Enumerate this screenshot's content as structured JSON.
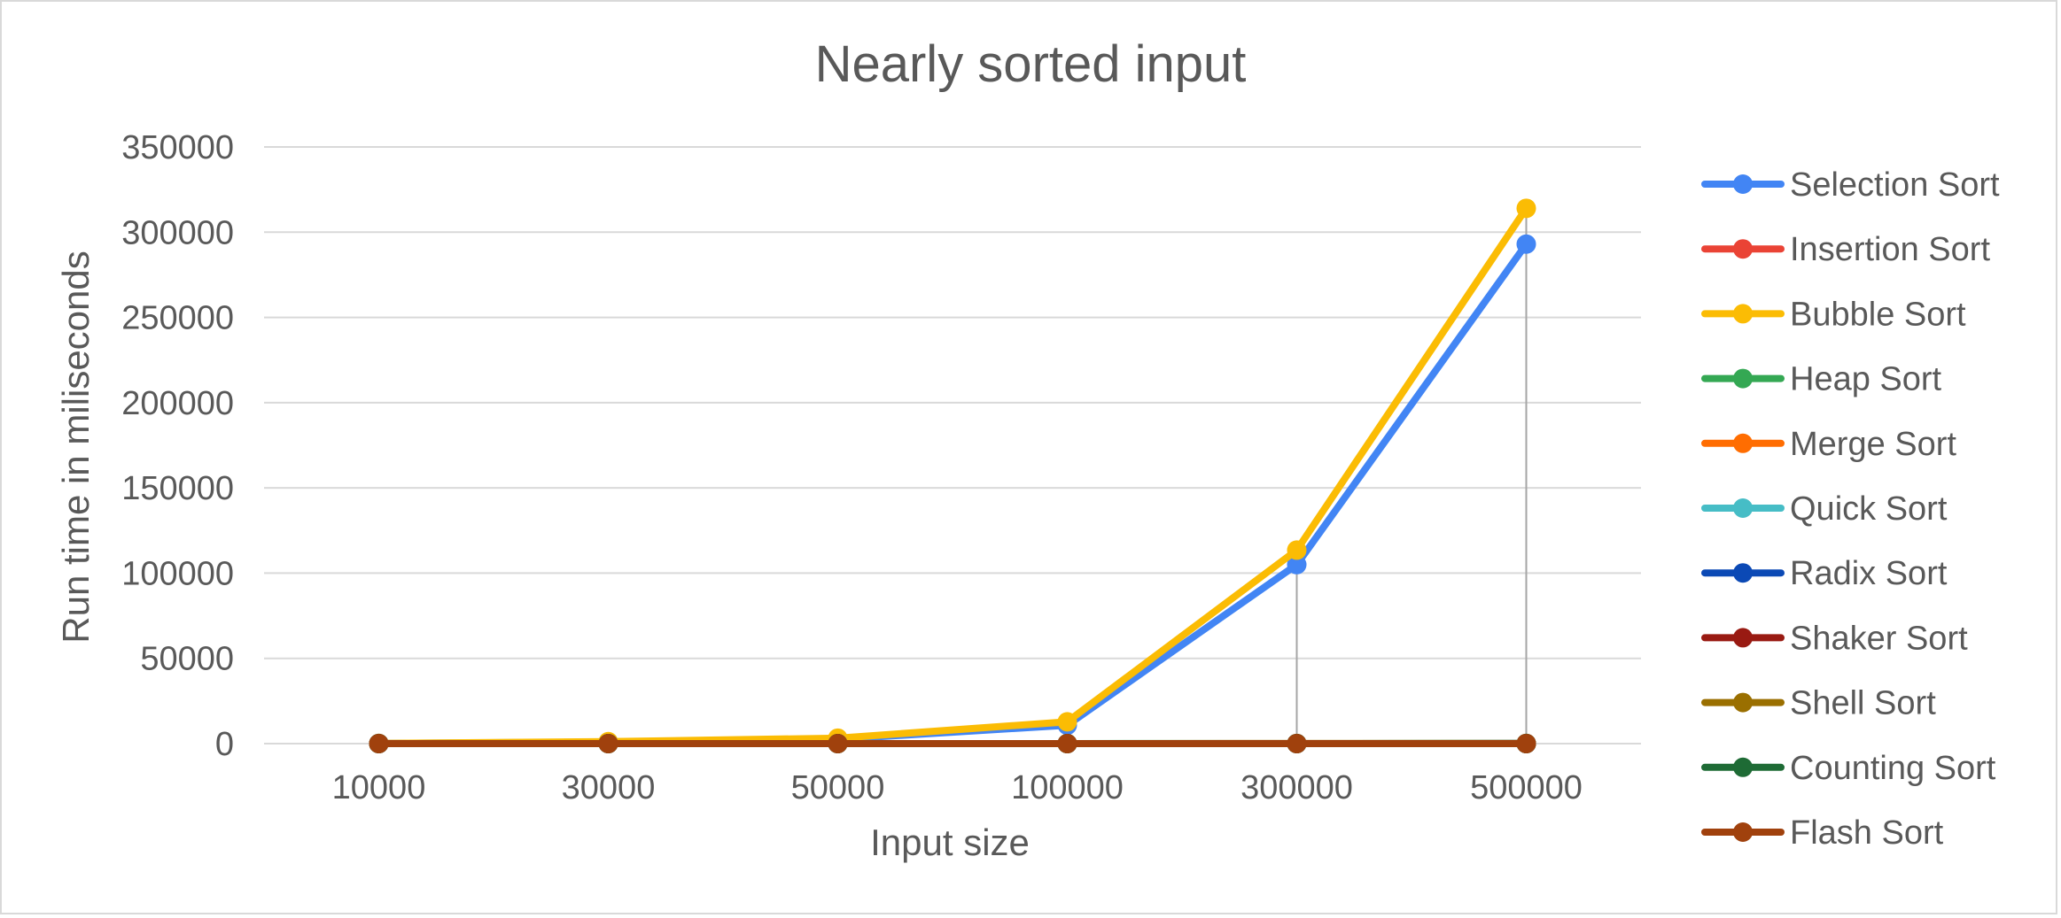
{
  "chart_data": {
    "type": "line",
    "title": "Nearly sorted input",
    "xlabel": "Input size",
    "ylabel": "Run time in miliseconds",
    "categories": [
      "10000",
      "30000",
      "50000",
      "100000",
      "300000",
      "500000"
    ],
    "ylim": [
      0,
      350000
    ],
    "yticks": [
      "0",
      "50000",
      "100000",
      "150000",
      "200000",
      "250000",
      "300000",
      "350000"
    ],
    "grid": true,
    "legend_position": "right",
    "drop_lines": true,
    "series": [
      {
        "name": "Selection Sort",
        "color": "#4285F4",
        "values": [
          105,
          950,
          2600,
          10800,
          105000,
          293000
        ]
      },
      {
        "name": "Insertion Sort",
        "color": "#EA4335",
        "values": [
          0,
          0,
          0,
          0,
          1,
          1
        ]
      },
      {
        "name": "Bubble Sort",
        "color": "#FBBC04",
        "values": [
          120,
          1150,
          3200,
          12800,
          113500,
          314000
        ]
      },
      {
        "name": "Heap Sort",
        "color": "#34A853",
        "values": [
          2,
          6,
          11,
          24,
          80,
          140
        ]
      },
      {
        "name": "Merge Sort",
        "color": "#FF6D01",
        "values": [
          1,
          4,
          7,
          15,
          50,
          90
        ]
      },
      {
        "name": "Quick Sort",
        "color": "#46BDC6",
        "values": [
          1,
          2,
          4,
          8,
          25,
          45
        ]
      },
      {
        "name": "Radix Sort",
        "color": "#0B49B5",
        "values": [
          1,
          2,
          3,
          6,
          20,
          35
        ]
      },
      {
        "name": "Shaker Sort",
        "color": "#991A12",
        "values": [
          0,
          0,
          0,
          1,
          1,
          2
        ]
      },
      {
        "name": "Shell Sort",
        "color": "#9A6F00",
        "values": [
          1,
          2,
          3,
          7,
          25,
          45
        ]
      },
      {
        "name": "Counting Sort",
        "color": "#1E6B35",
        "values": [
          0,
          0,
          1,
          1,
          3,
          5
        ]
      },
      {
        "name": "Flash Sort",
        "color": "#A0410D",
        "values": [
          1,
          1,
          2,
          4,
          12,
          20
        ]
      }
    ]
  }
}
